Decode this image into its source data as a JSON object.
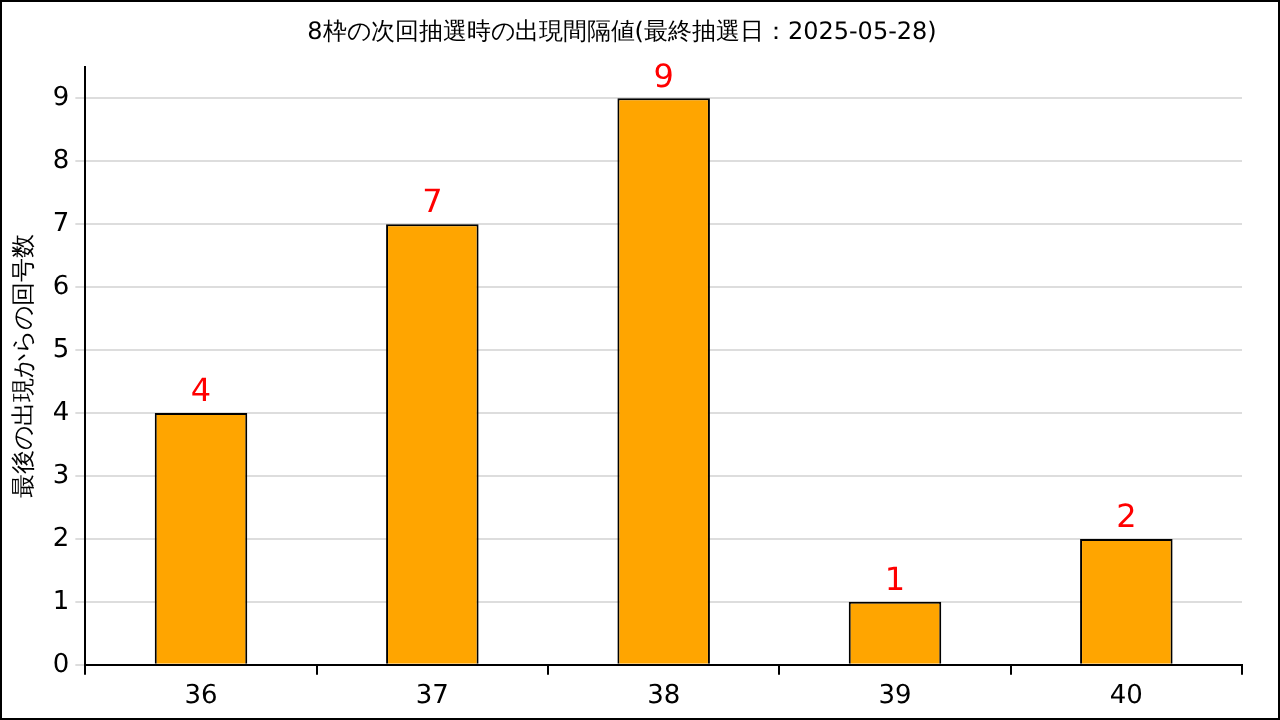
{
  "chart_data": {
    "type": "bar",
    "title": "8枠の次回抽選時の出現間隔値(最終抽選日：2025-05-28)",
    "ylabel": "最後の出現からの回号数",
    "categories": [
      "36",
      "37",
      "38",
      "39",
      "40"
    ],
    "series": [
      {
        "color": "#ffa500",
        "values": [
          4,
          7,
          9,
          1,
          2
        ]
      }
    ],
    "ylim": [
      0,
      9.5
    ],
    "yticks": [
      0,
      1,
      2,
      3,
      4,
      5,
      6,
      7,
      8,
      9
    ],
    "grid": "y",
    "data_labels": true,
    "legend": false
  }
}
